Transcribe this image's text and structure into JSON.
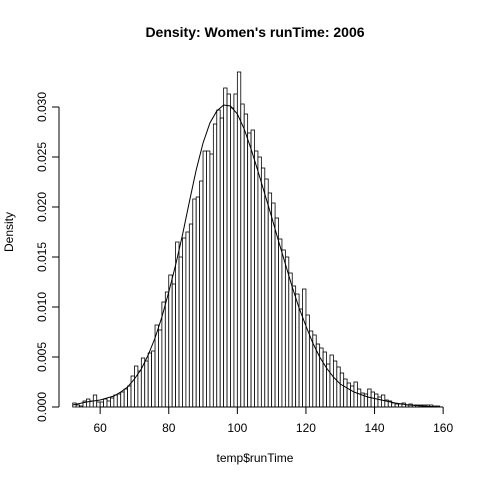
{
  "chart_data": {
    "type": "bar",
    "subtype": "histogram",
    "title": "Density: Women's runTime:  2006",
    "xlabel": "temp$runTime",
    "ylabel": "Density",
    "xlim": [
      48,
      162
    ],
    "ylim": [
      0,
      0.0348
    ],
    "bin_width": 1,
    "bin_start": 52,
    "x_ticks": [
      60,
      80,
      100,
      120,
      140,
      160
    ],
    "x_tick_labels": [
      "60",
      "80",
      "100",
      "120",
      "140",
      "160"
    ],
    "y_ticks": [
      0.0,
      0.005,
      0.01,
      0.015,
      0.02,
      0.025,
      0.03
    ],
    "y_tick_labels": [
      "0.000",
      "0.005",
      "0.010",
      "0.015",
      "0.020",
      "0.025",
      "0.030"
    ],
    "density": [
      0.0004,
      0.0002,
      0.0001,
      0.0006,
      0.0008,
      0.0006,
      0.0012,
      0.0005,
      0.0005,
      0.0008,
      0.0006,
      0.0009,
      0.0012,
      0.0013,
      0.0015,
      0.0018,
      0.0021,
      0.0031,
      0.0041,
      0.0036,
      0.0049,
      0.0046,
      0.0054,
      0.0056,
      0.0082,
      0.0077,
      0.0105,
      0.0115,
      0.0132,
      0.0123,
      0.0165,
      0.015,
      0.0169,
      0.0175,
      0.0183,
      0.0208,
      0.021,
      0.0226,
      0.0256,
      0.0256,
      0.0253,
      0.0283,
      0.0297,
      0.0289,
      0.0319,
      0.0313,
      0.0299,
      0.0313,
      0.0335,
      0.0303,
      0.0293,
      0.0274,
      0.0277,
      0.0256,
      0.025,
      0.0239,
      0.0228,
      0.0214,
      0.0204,
      0.0189,
      0.0168,
      0.0157,
      0.015,
      0.0134,
      0.0121,
      0.0113,
      0.0098,
      0.0118,
      0.0092,
      0.0076,
      0.0072,
      0.0063,
      0.0059,
      0.0055,
      0.0043,
      0.0052,
      0.0046,
      0.004,
      0.0034,
      0.0028,
      0.0024,
      0.0021,
      0.0025,
      0.0018,
      0.0014,
      0.0013,
      0.0018,
      0.0015,
      0.0013,
      0.001,
      0.0012,
      0.0007,
      0.0006,
      0.0004,
      0.0003,
      0.0003,
      0.0004,
      0.0002,
      0.0003,
      0.0002,
      0.0002,
      0.0002,
      0.0002,
      0.0002,
      0.0002,
      0.0001,
      0.0001,
      0.0
    ],
    "density_curve": {
      "x": [
        52,
        56,
        60,
        64,
        66,
        68,
        70,
        72,
        74,
        76,
        78,
        80,
        82,
        84,
        86,
        88,
        90,
        92,
        94,
        96,
        98,
        100,
        102,
        104,
        106,
        108,
        110,
        112,
        114,
        116,
        118,
        120,
        122,
        124,
        126,
        128,
        130,
        134,
        138,
        142,
        146,
        150,
        154,
        159
      ],
      "y": [
        0.0002,
        0.0005,
        0.0007,
        0.0011,
        0.0015,
        0.002,
        0.0028,
        0.0038,
        0.0052,
        0.0069,
        0.009,
        0.0115,
        0.0142,
        0.0172,
        0.0205,
        0.0237,
        0.0264,
        0.0284,
        0.0296,
        0.0302,
        0.0301,
        0.0293,
        0.0278,
        0.0258,
        0.0236,
        0.0213,
        0.019,
        0.0166,
        0.0143,
        0.012,
        0.0099,
        0.0081,
        0.0064,
        0.005,
        0.0039,
        0.003,
        0.0023,
        0.0015,
        0.001,
        0.0007,
        0.0004,
        0.0002,
        0.0001,
        0.0
      ]
    },
    "grid": false,
    "bar_fill": "#ffffff",
    "bar_stroke": "#000000",
    "line_color": "#000000"
  }
}
